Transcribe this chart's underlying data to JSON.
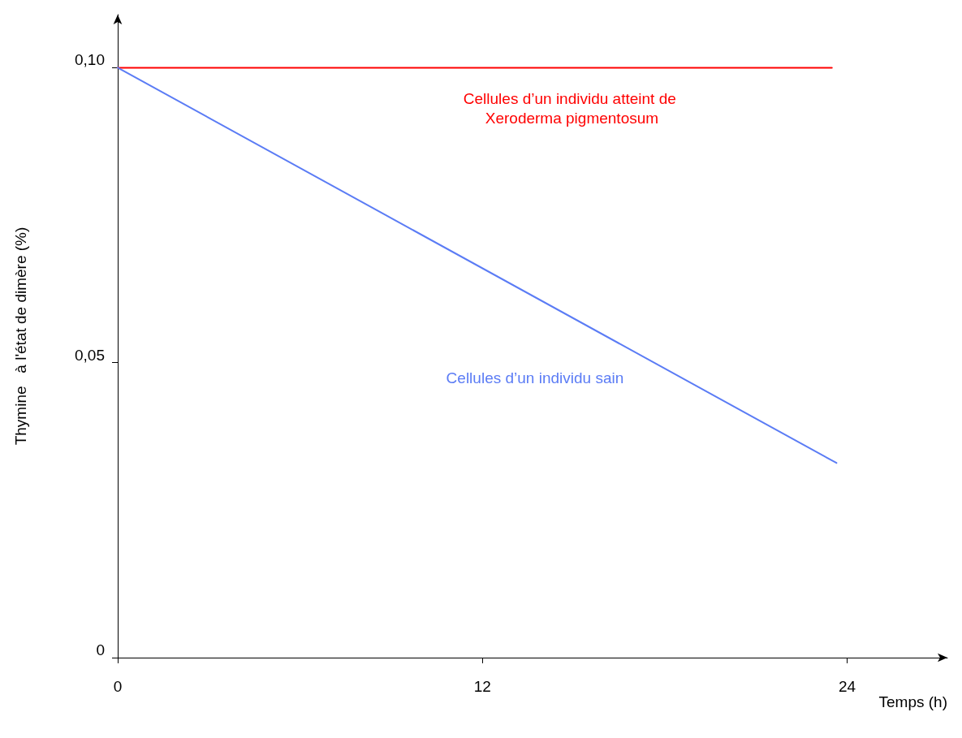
{
  "chart_data": {
    "type": "line",
    "xlabel": "Temps (h)",
    "ylabel": "Thymine   à l'état de dimère (%)",
    "xlim": [
      0,
      27.3
    ],
    "xticks": [
      0,
      12,
      24
    ],
    "ylim": [
      0,
      0.109
    ],
    "yticks": [
      {
        "value": 0,
        "label": "0"
      },
      {
        "value": 0.05,
        "label": "0,05"
      },
      {
        "value": 0.1,
        "label": "0,10"
      }
    ],
    "grid": false,
    "legend": false,
    "marker": "none",
    "line_style": "solid",
    "series": [
      {
        "name": "Cellules d’un individu atteint de Xeroderma pigmentosum",
        "color": "#ff0000",
        "x": [
          0,
          23.5
        ],
        "values": [
          0.1,
          0.1
        ]
      },
      {
        "name": "Cellules d’un individu sain",
        "color": "#5b7cf5",
        "x": [
          0,
          23.65
        ],
        "values": [
          0.1,
          0.033
        ]
      }
    ]
  }
}
